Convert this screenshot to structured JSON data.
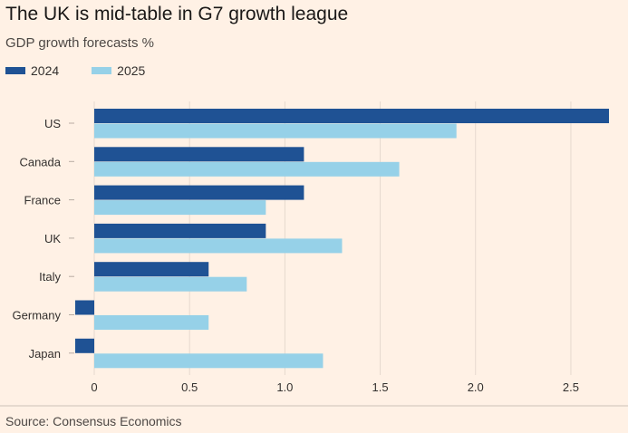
{
  "chart_data": {
    "type": "bar",
    "orientation": "horizontal",
    "title": "The UK is mid-table in G7 growth league",
    "subtitle": "GDP growth forecasts %",
    "source": "Source: Consensus Economics",
    "categories": [
      "US",
      "Canada",
      "France",
      "UK",
      "Italy",
      "Germany",
      "Japan"
    ],
    "series": [
      {
        "name": "2024",
        "color": "#1f5294",
        "values": [
          2.7,
          1.1,
          1.1,
          0.9,
          0.6,
          -0.1,
          -0.1
        ]
      },
      {
        "name": "2025",
        "color": "#96d1e8",
        "values": [
          1.9,
          1.6,
          0.9,
          1.3,
          0.8,
          0.6,
          1.2
        ]
      }
    ],
    "xlim": [
      -0.1,
      2.7
    ],
    "xticks": [
      0,
      0.5,
      1,
      1.5,
      2,
      2.5
    ],
    "xtick_labels": [
      "0",
      "0.5",
      "1.0",
      "1.5",
      "2.0",
      "2.5"
    ],
    "legend_position": "top-left",
    "grid": true
  }
}
